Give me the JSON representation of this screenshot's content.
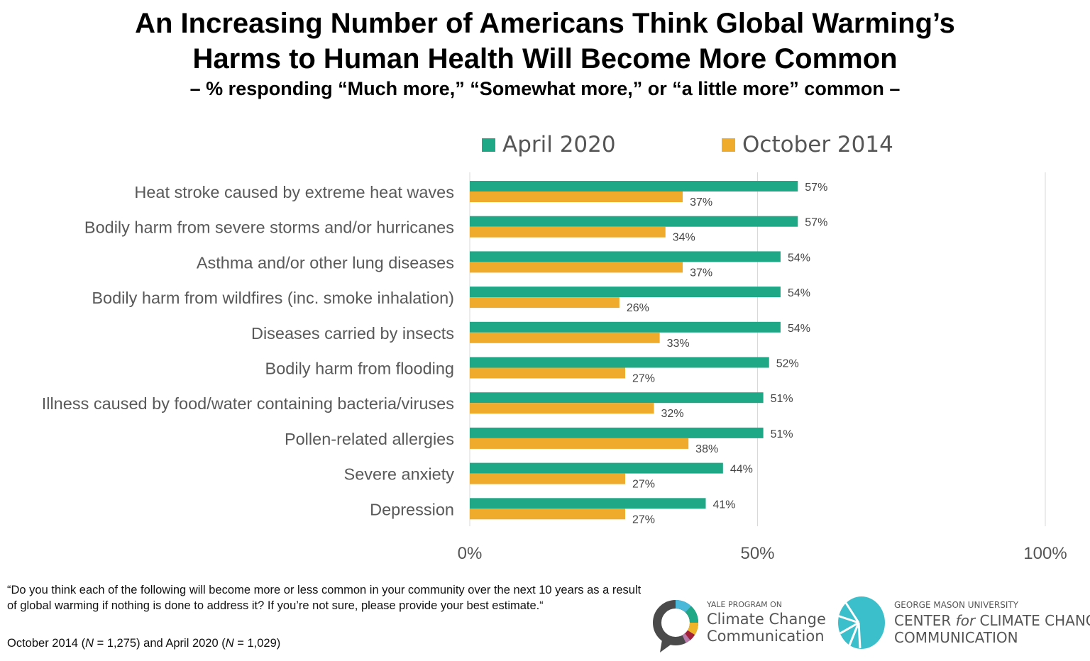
{
  "title_line1": "An Increasing Number of Americans Think Global Warming’s",
  "title_line2": "Harms to Human Health Will Become More Common",
  "subtitle": "– % responding “Much more,” “Somewhat more,” or “a little more” common –",
  "colors": {
    "april_2020": "#1ea886",
    "october_2014": "#eeab2c",
    "grid": "#d9d9d9"
  },
  "chart_data": {
    "type": "bar",
    "orientation": "horizontal",
    "categories": [
      "Heat stroke caused by extreme heat waves",
      "Bodily harm from severe storms and/or hurricanes",
      "Asthma and/or other lung diseases",
      "Bodily harm from wildfires (inc. smoke inhalation)",
      "Diseases carried by insects",
      "Bodily harm from flooding",
      "Illness caused by food/water containing bacteria/viruses",
      "Pollen-related allergies",
      "Severe anxiety",
      "Depression"
    ],
    "series": [
      {
        "name": "April 2020",
        "values": [
          57,
          57,
          54,
          54,
          54,
          52,
          51,
          51,
          44,
          41
        ]
      },
      {
        "name": "October 2014",
        "values": [
          37,
          34,
          37,
          26,
          33,
          27,
          32,
          38,
          27,
          27
        ]
      }
    ],
    "xlim": [
      0,
      100
    ],
    "xticks": [
      "0%",
      "50%",
      "100%"
    ],
    "grid": true,
    "legend": "top",
    "value_suffix": "%"
  },
  "footnote_question": "“Do you think each of the following will become more or less common in your community over the next 10 years as a result of global warming if nothing is done to address it? If you’re not sure, please provide your best estimate.“",
  "footnote_sample": {
    "pre": "October 2014 (",
    "n1": "N",
    "mid1": " = 1,275) and April 2020 (",
    "n2": "N",
    "mid2": " = 1,029)"
  },
  "logos": {
    "yale": {
      "line1": "YALE PROGRAM ON",
      "line2": "Climate Change",
      "line3": "Communication"
    },
    "gmu": {
      "line1": "GEORGE MASON UNIVERSITY",
      "line2a": "CENTER ",
      "line2b": "for",
      "line2c": " CLIMATE CHANGE",
      "line3": "COMMUNICATION"
    }
  }
}
